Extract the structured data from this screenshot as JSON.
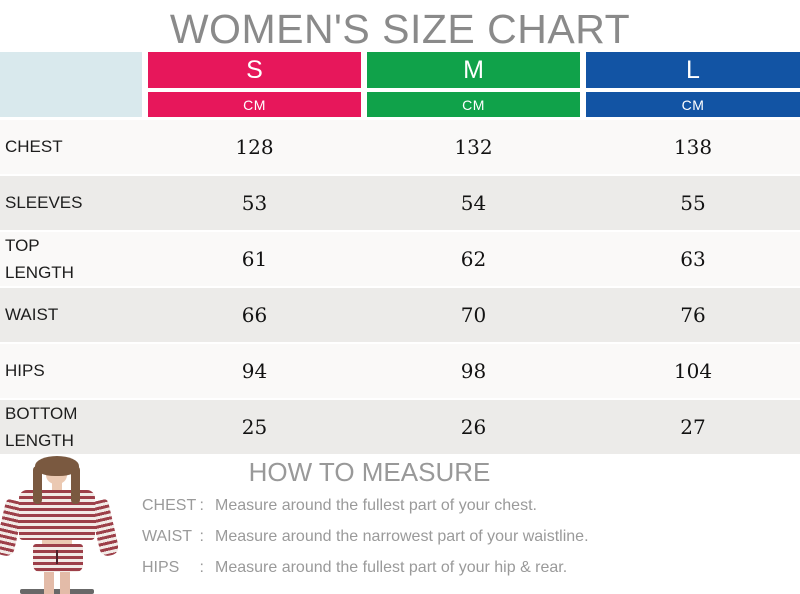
{
  "chart_data": {
    "type": "table",
    "title": "WOMEN'S SIZE CHART",
    "columns": [
      {
        "label": "S",
        "unit": "CM"
      },
      {
        "label": "M",
        "unit": "CM"
      },
      {
        "label": "L",
        "unit": "CM"
      }
    ],
    "rows": [
      {
        "label": "CHEST",
        "values": [
          128,
          132,
          138
        ]
      },
      {
        "label": "SLEEVES",
        "values": [
          53,
          54,
          55
        ]
      },
      {
        "label": "TOP LENGTH",
        "values": [
          61,
          62,
          63
        ]
      },
      {
        "label": "WAIST",
        "values": [
          66,
          70,
          76
        ]
      },
      {
        "label": "HIPS",
        "values": [
          94,
          98,
          104
        ]
      },
      {
        "label": "BOTTOM LENGTH",
        "values": [
          25,
          26,
          27
        ]
      }
    ]
  },
  "how_to_measure": {
    "heading": "HOW TO MEASURE",
    "items": [
      {
        "name": "CHEST",
        "colon": ":",
        "text": "Measure around the fullest part of your chest."
      },
      {
        "name": "WAIST",
        "colon": ":",
        "text": "Measure around the narrowest part of your waistline."
      },
      {
        "name": "HIPS",
        "colon": ":",
        "text": "Measure around the fullest part of your hip & rear."
      }
    ]
  },
  "colors": {
    "size_s_pink": "#E7175B",
    "size_m_green": "#10A24A",
    "size_l_blue": "#1254A4",
    "corner_cell_cyan": "#D9E9ED",
    "row_light": "#FAF9F8",
    "row_dark": "#ECEBE9",
    "title_gray": "#8A8A8A",
    "instruction_gray": "#9A9A9A",
    "stripe_red": "#9D3F49"
  },
  "model_photo": {
    "alt": "Model wearing a red and white striped long-sleeve crop top and matching striped shorts"
  }
}
